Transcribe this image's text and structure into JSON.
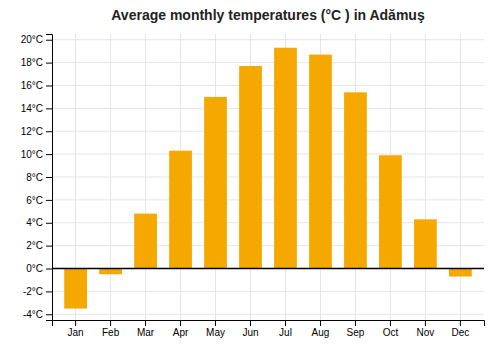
{
  "chart_data": {
    "type": "bar",
    "title": "Average monthly temperatures (°C ) in Adămuş",
    "categories": [
      "Jan",
      "Feb",
      "Mar",
      "Apr",
      "May",
      "Jun",
      "Jul",
      "Aug",
      "Sep",
      "Oct",
      "Nov",
      "Dec"
    ],
    "values": [
      -3.5,
      -0.5,
      4.8,
      10.3,
      15.0,
      17.7,
      19.3,
      18.7,
      15.4,
      9.9,
      4.3,
      -0.7
    ],
    "color": "#F5A800",
    "ylim": [
      -4.5,
      20.5
    ],
    "yticks": [
      {
        "value": -4,
        "label": "-4°C"
      },
      {
        "value": -2,
        "label": "-2°C"
      },
      {
        "value": 0,
        "label": "0°C"
      },
      {
        "value": 2,
        "label": "2°C"
      },
      {
        "value": 4,
        "label": "4°C"
      },
      {
        "value": 6,
        "label": "6°C"
      },
      {
        "value": 8,
        "label": "8°C"
      },
      {
        "value": 10,
        "label": "10°C"
      },
      {
        "value": 12,
        "label": "12°C"
      },
      {
        "value": 14,
        "label": "14°C"
      },
      {
        "value": 16,
        "label": "16°C"
      },
      {
        "value": 18,
        "label": "18°C"
      },
      {
        "value": 20,
        "label": "20°C"
      }
    ],
    "grid": true
  }
}
